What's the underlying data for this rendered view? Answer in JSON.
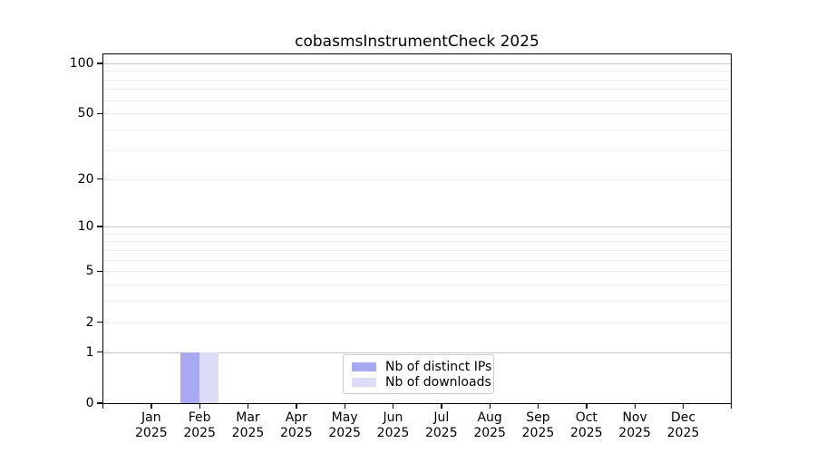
{
  "chart_data": {
    "type": "bar",
    "title": "cobasmsInstrumentCheck 2025",
    "x_axis": {
      "categories": [
        "Jan",
        "Feb",
        "Mar",
        "Apr",
        "May",
        "Jun",
        "Jul",
        "Aug",
        "Sep",
        "Oct",
        "Nov",
        "Dec"
      ],
      "year": "2025"
    },
    "series": [
      {
        "name": "Nb of distinct IPs",
        "color": "#a9a9f2",
        "values": [
          0,
          1,
          0,
          0,
          0,
          0,
          0,
          0,
          0,
          0,
          0,
          0
        ]
      },
      {
        "name": "Nb of downloads",
        "color": "#dcdcf7",
        "values": [
          0,
          1,
          0,
          0,
          0,
          0,
          0,
          0,
          0,
          0,
          0,
          0
        ]
      }
    ],
    "y_axis": {
      "scale": "log10(1+y)",
      "labeled_ticks": [
        0,
        1,
        2,
        5,
        10,
        20,
        50,
        100
      ],
      "major_gridlines": [
        1,
        10,
        100
      ],
      "minor_gridlines": [
        2,
        3,
        4,
        5,
        6,
        7,
        8,
        9,
        20,
        30,
        40,
        50,
        60,
        70,
        80,
        90
      ],
      "top_value": 113
    },
    "legend_position": "bottom-center",
    "grid": true,
    "colors": {
      "grid_major": "#c6c6c6",
      "grid_minor": "#ededed",
      "spine": "#000000",
      "legend_border": "#cccccc",
      "background": "#ffffff"
    }
  }
}
